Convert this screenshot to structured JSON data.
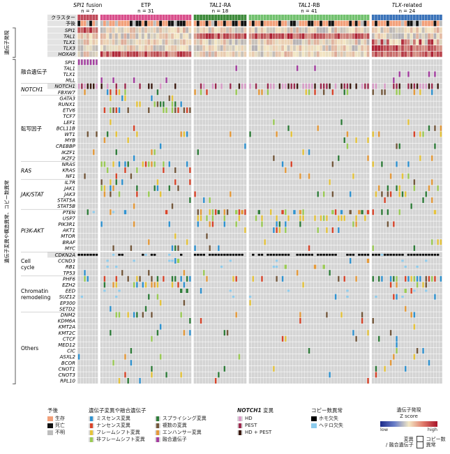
{
  "chart_data": {
    "type": "heatmap",
    "groups": [
      {
        "name": "SPI1 fusion",
        "n": "n = 7",
        "italic_name": "SPI1",
        "suffix": " fusion",
        "color": "#c04a5a",
        "count": 7
      },
      {
        "name": "ETP",
        "n": "n = 31",
        "italic_name": "",
        "suffix": "ETP",
        "color": "#d94f8c",
        "count": 31
      },
      {
        "name": "TAL1-RA",
        "n": "n = 18",
        "italic_name": "TAL1",
        "suffix": "-RA",
        "color": "#3f8b3c",
        "count": 18
      },
      {
        "name": "TAL1-RB",
        "n": "n = 41",
        "italic_name": "TAL1",
        "suffix": "-RB",
        "color": "#72c16e",
        "count": 41
      },
      {
        "name": "TLX-related",
        "n": "n = 24",
        "italic_name": "TLX",
        "suffix": "-related",
        "color": "#3b73b9",
        "count": 24
      }
    ],
    "top_rows": [
      "クラスター",
      "予後"
    ],
    "expression_rows": [
      "SPI1",
      "TAL1",
      "TLX1",
      "TLX3",
      "HOXA9"
    ],
    "genes": [
      "SPI1",
      "TAL1",
      "TLX1",
      "MLL",
      "NOTCH1",
      "FBXW7",
      "GATA3",
      "RUNX1",
      "ETV6",
      "TCF7",
      "LEF1",
      "BCL11B",
      "WT1",
      "MYB",
      "CREBBP",
      "IKZF1",
      "IKZF2",
      "NRAS",
      "KRAS",
      "NF1",
      "IL7R",
      "JAK1",
      "JAK3",
      "STAT5A",
      "STAT5B",
      "PTEN",
      "USP7",
      "PIK3R1",
      "AKT1",
      "MTOR",
      "BRAF",
      "MYC",
      "CDKN2A",
      "CCND3",
      "RB1",
      "TP53",
      "PHF6",
      "EZH2",
      "EED",
      "SUZ12",
      "EP300",
      "SETD2",
      "DNM2",
      "KDM6A",
      "KMT2A",
      "KMT2C",
      "CTCF",
      "MED12",
      "CIC",
      "ASXL2",
      "BCOR",
      "CNOT1",
      "CNOT3",
      "RPL10"
    ],
    "pathways": [
      {
        "label": "融合遺伝子",
        "start": 0,
        "end": 3
      },
      {
        "label": "NOTCH1",
        "start": 4,
        "end": 5,
        "italic": true
      },
      {
        "label": "転写因子",
        "start": 6,
        "end": 16
      },
      {
        "label": "RAS",
        "start": 17,
        "end": 19,
        "italic": true
      },
      {
        "label": "JAK/STAT",
        "start": 20,
        "end": 24,
        "italic": true
      },
      {
        "label": "PI3K-AKT",
        "start": 25,
        "end": 31,
        "italic": true
      },
      {
        "label": "Cell cycle",
        "start": 32,
        "end": 35
      },
      {
        "label": "Chromatin remodeling",
        "start": 36,
        "end": 41
      },
      {
        "label": "Others",
        "start": 42,
        "end": 53
      }
    ],
    "side_labels": [
      "遺伝子発現",
      "遺伝子変異や構造異常、コピー数異常"
    ],
    "grid": true
  },
  "legend": {
    "prognosis": {
      "title": "予後",
      "items": [
        {
          "label": "生存",
          "color": "#f2a07a"
        },
        {
          "label": "死亡",
          "color": "#111111"
        },
        {
          "label": "不明",
          "color": "#bdbdbd"
        }
      ]
    },
    "alterations": {
      "title": "遺伝子変異や融合遺伝子",
      "items": [
        {
          "label": "ミスセンス変異",
          "color": "#2f93d1"
        },
        {
          "label": "ナンセンス変異",
          "color": "#d9442a"
        },
        {
          "label": "フレームシフト変異",
          "color": "#e6c43a"
        },
        {
          "label": "非フレームシフト変異",
          "color": "#9bcb55"
        },
        {
          "label": "スプライシング変異",
          "color": "#2f7d3a"
        },
        {
          "label": "複数の変異",
          "color": "#74583c"
        },
        {
          "label": "エンハンサー変異",
          "color": "#e59a3a"
        },
        {
          "label": "融合遺伝子",
          "color": "#a43da0"
        }
      ]
    },
    "notch1": {
      "title": "NOTCH1 変異",
      "items": [
        {
          "label": "HD",
          "color": "#d99ac7"
        },
        {
          "label": "PEST",
          "color": "#9c2a4e"
        },
        {
          "label": "HD + PEST",
          "color": "#3b1a10"
        }
      ]
    },
    "cna": {
      "title": "コピー数異常",
      "items": [
        {
          "label": "ホモ欠失",
          "color": "#000000"
        },
        {
          "label": "ヘテロ欠失",
          "color": "#8ccbed"
        }
      ]
    },
    "expression": {
      "title": "遺伝子発現",
      "subtitle": "Z score",
      "low": "low",
      "high": "high"
    },
    "cell_key": {
      "left": "変異",
      "left2": "/ 融合遺伝子",
      "right": "コピー数",
      "right2": "異常"
    }
  },
  "colors": {
    "empty": "#d4d4d4",
    "expr_mid": "#f3e8c5",
    "expr_low": "#1b2a8a",
    "expr_high": "#a8142a",
    "survive": "#f2a07a",
    "dead": "#111111",
    "unknown": "#bdbdbd"
  }
}
